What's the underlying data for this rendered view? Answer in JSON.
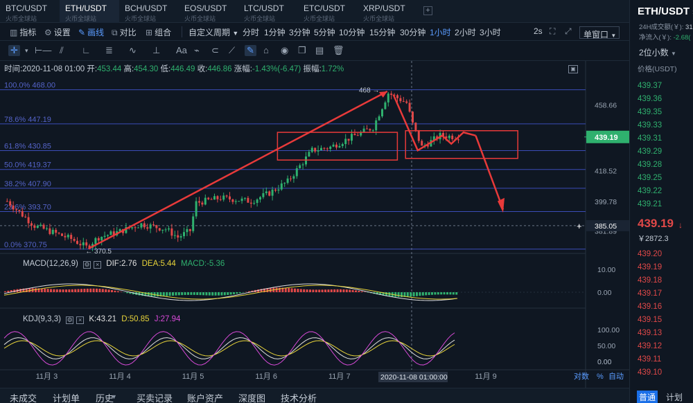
{
  "tabs": [
    {
      "symbol": "BTC/USDT",
      "exchange": "火币全球站"
    },
    {
      "symbol": "ETH/USDT",
      "exchange": "火币全球站"
    },
    {
      "symbol": "BCH/USDT",
      "exchange": "火币全球站"
    },
    {
      "symbol": "EOS/USDT",
      "exchange": "火币全球站"
    },
    {
      "symbol": "LTC/USDT",
      "exchange": "火币全球站"
    },
    {
      "symbol": "ETC/USDT",
      "exchange": "火币全球站"
    },
    {
      "symbol": "XRP/USDT",
      "exchange": "火币全球站"
    }
  ],
  "tab_add": "+",
  "toolbar": {
    "indicator": "指标",
    "settings": "设置",
    "draw": "画线",
    "compare": "对比",
    "combine": "组合",
    "custom_period": "自定义周期",
    "timeline": "分时",
    "periods": [
      "1分钟",
      "3分钟",
      "5分钟",
      "10分钟",
      "15分钟",
      "30分钟",
      "1小时",
      "2小时",
      "3小时"
    ],
    "active_period": "1小时",
    "interval": "2s",
    "window_mode": "单窗口"
  },
  "draw_tools": {
    "text_tool": "Aa"
  },
  "info_bar": {
    "time_label": "时间:",
    "time": "2020-11-08 01:00",
    "open_label": "开:",
    "open": "453.44",
    "high_label": "高:",
    "high": "454.30",
    "low_label": "低:",
    "low": "446.49",
    "close_label": "收:",
    "close": "446.86",
    "change_label": "涨幅:",
    "change": "-1.43%(-6.47)",
    "amp_label": "振幅:",
    "amp": "1.72%"
  },
  "fib_levels": [
    {
      "label": "100.0% 468.00",
      "price": 468.0
    },
    {
      "label": "78.6% 447.19",
      "price": 447.19
    },
    {
      "label": "61.8% 430.85",
      "price": 430.85
    },
    {
      "label": "50.0% 419.37",
      "price": 419.37
    },
    {
      "label": "38.2% 407.90",
      "price": 407.9
    },
    {
      "label": "23.6% 393.70",
      "price": 393.7
    },
    {
      "label": "0.0% 370.75",
      "price": 370.75
    }
  ],
  "price_ticks": [
    "458.66",
    "418.52",
    "399.78",
    "381.89"
  ],
  "crosshair": {
    "label": "385.05",
    "price": 385.05
  },
  "current_price": "439.19",
  "annotations": {
    "high": "468",
    "low": "370.5"
  },
  "macd": {
    "title": "MACD(12,26,9)",
    "dif": "DIF:2.76",
    "dea": "DEA:5.44",
    "macd": "MACD:-5.36",
    "ticks": [
      "10.00",
      "0.00"
    ]
  },
  "kdj": {
    "title": "KDJ(9,3,3)",
    "k": "K:43.21",
    "d": "D:50.85",
    "j": "J:27.94",
    "ticks": [
      "100.00",
      "50.00",
      "0.00"
    ]
  },
  "x_axis": {
    "labels": [
      "11月 3",
      "11月 4",
      "11月 5",
      "11月 6",
      "11月 7",
      "11月 9"
    ],
    "cursor": "2020-11-08 01:00:00"
  },
  "axis_controls": {
    "log": "对数",
    "percent": "%",
    "auto": "自动"
  },
  "bottom_tabs": [
    "未成交",
    "计划单",
    "历史",
    "买卖记录",
    "账户资产",
    "深度图",
    "技术分析"
  ],
  "colors": {
    "up": "#2fb06e",
    "down": "#e04848",
    "accent": "#5b9cff",
    "annotation": "#e83a3a"
  },
  "chart_data": {
    "type": "candlestick",
    "timeframe": "1h",
    "ylim": [
      365,
      475
    ],
    "x_range": "2020-11-02 to 2020-11-09",
    "close_points": [
      {
        "t": "2020-11-02 12:00",
        "close": 400
      },
      {
        "t": "2020-11-02 21:00",
        "close": 385
      },
      {
        "t": "2020-11-03 09:00",
        "close": 377
      },
      {
        "t": "2020-11-03 14:00",
        "close": 372
      },
      {
        "t": "2020-11-03 18:00",
        "close": 378
      },
      {
        "t": "2020-11-04 00:00",
        "close": 381
      },
      {
        "t": "2020-11-04 08:00",
        "close": 386
      },
      {
        "t": "2020-11-04 16:00",
        "close": 383
      },
      {
        "t": "2020-11-04 20:00",
        "close": 378
      },
      {
        "t": "2020-11-05 00:00",
        "close": 382
      },
      {
        "t": "2020-11-05 02:00",
        "close": 399
      },
      {
        "t": "2020-11-05 10:00",
        "close": 402
      },
      {
        "t": "2020-11-05 20:00",
        "close": 400
      },
      {
        "t": "2020-11-06 02:00",
        "close": 405
      },
      {
        "t": "2020-11-06 08:00",
        "close": 412
      },
      {
        "t": "2020-11-06 16:00",
        "close": 431
      },
      {
        "t": "2020-11-06 22:00",
        "close": 433
      },
      {
        "t": "2020-11-07 06:00",
        "close": 440
      },
      {
        "t": "2020-11-07 12:00",
        "close": 445
      },
      {
        "t": "2020-11-07 17:00",
        "close": 466
      },
      {
        "t": "2020-11-07 23:00",
        "close": 460
      },
      {
        "t": "2020-11-08 01:00",
        "close": 447
      },
      {
        "t": "2020-11-08 04:00",
        "close": 433
      },
      {
        "t": "2020-11-08 10:00",
        "close": 440
      },
      {
        "t": "2020-11-08 16:00",
        "close": 439.19
      }
    ]
  },
  "right_panel": {
    "symbol": "ETH/USDT",
    "vol_label": "24H成交额(￥):",
    "vol": "31.",
    "inflow_label": "净流入(￥):",
    "inflow": "-2.68(",
    "decimals": "2位小数",
    "price_header": "价格(USDT)",
    "bids": [
      "439.37",
      "439.36",
      "439.35",
      "439.33",
      "439.31",
      "439.29",
      "439.28",
      "439.25",
      "439.22",
      "439.21"
    ],
    "last": "439.19",
    "last_cny": "￥2872.3",
    "asks": [
      "439.20",
      "439.19",
      "439.18",
      "439.17",
      "439.16",
      "439.15",
      "439.13",
      "439.12",
      "439.11",
      "439.10"
    ],
    "mode_normal": "普通",
    "mode_plan": "计划"
  }
}
